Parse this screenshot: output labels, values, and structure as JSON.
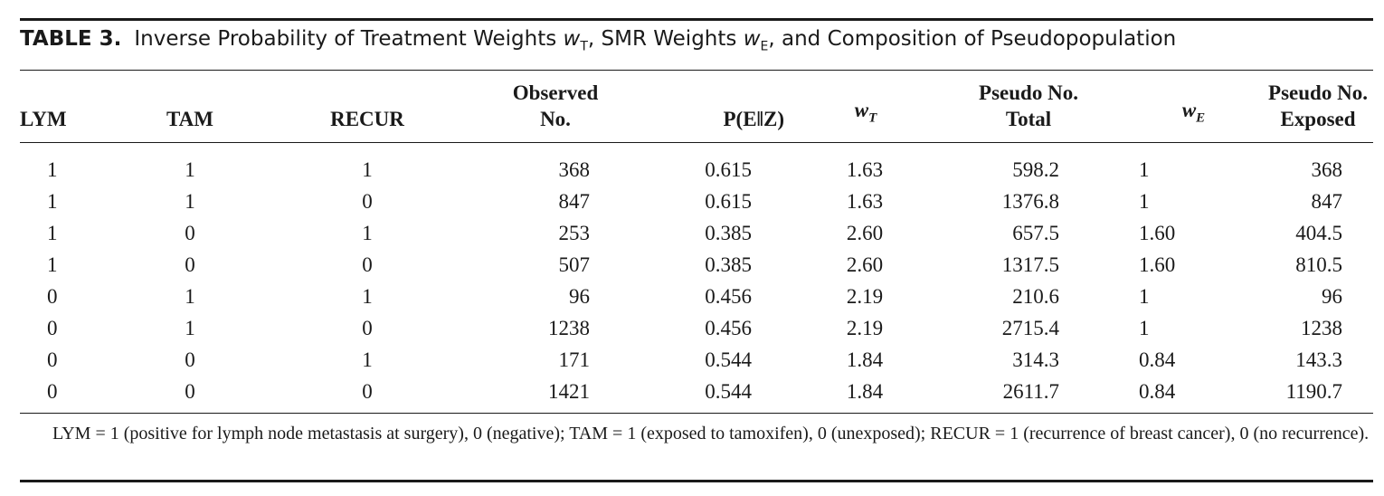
{
  "table": {
    "label": "TABLE 3.",
    "caption_parts": {
      "a": "Inverse Probability of Treatment Weights ",
      "w1": "w",
      "s1": "T",
      "b": ", SMR Weights ",
      "w2": "w",
      "s2": "E",
      "c": ", and Composition of Pseudopopulation"
    },
    "headers": {
      "lym": "LYM",
      "tam": "TAM",
      "recur": "RECUR",
      "observed_1": "Observed",
      "observed_2": "No.",
      "pez": "P(E‖Z)",
      "wt_w": "w",
      "wt_sub": "T",
      "pseudo_total_1": "Pseudo No.",
      "pseudo_total_2": "Total",
      "we_w": "w",
      "we_sub": "E",
      "pseudo_exposed_1": "Pseudo No.",
      "pseudo_exposed_2": "Exposed"
    },
    "rows": [
      [
        "1",
        "1",
        "1",
        "368",
        "0.615",
        "1.63",
        "598.2",
        "1",
        "368"
      ],
      [
        "1",
        "1",
        "0",
        "847",
        "0.615",
        "1.63",
        "1376.8",
        "1",
        "847"
      ],
      [
        "1",
        "0",
        "1",
        "253",
        "0.385",
        "2.60",
        "657.5",
        "1.60",
        "404.5"
      ],
      [
        "1",
        "0",
        "0",
        "507",
        "0.385",
        "2.60",
        "1317.5",
        "1.60",
        "810.5"
      ],
      [
        "0",
        "1",
        "1",
        "96",
        "0.456",
        "2.19",
        "210.6",
        "1",
        "96"
      ],
      [
        "0",
        "1",
        "0",
        "1238",
        "0.456",
        "2.19",
        "2715.4",
        "1",
        "1238"
      ],
      [
        "0",
        "0",
        "1",
        "171",
        "0.544",
        "1.84",
        "314.3",
        "0.84",
        "143.3"
      ],
      [
        "0",
        "0",
        "0",
        "1421",
        "0.544",
        "1.84",
        "2611.7",
        "0.84",
        "1190.7"
      ]
    ],
    "footnote": "LYM = 1 (positive for lymph node metastasis at surgery), 0 (negative); TAM = 1 (exposed to tamoxifen), 0 (unexposed); RECUR = 1 (recurrence of breast cancer), 0 (no recurrence)."
  }
}
